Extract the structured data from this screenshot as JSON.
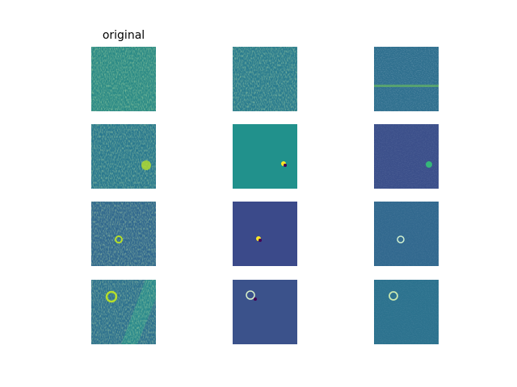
{
  "grid": {
    "title": "original"
  }
}
